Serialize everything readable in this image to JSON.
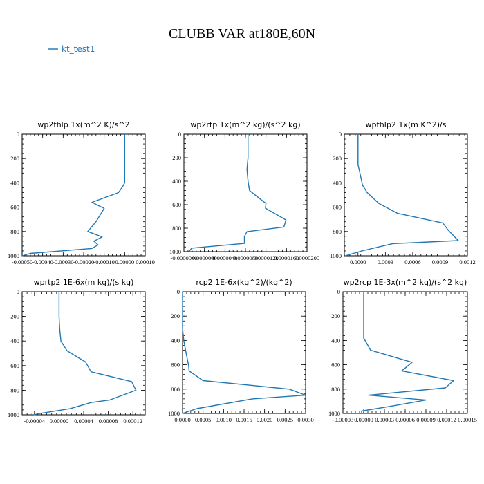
{
  "title": "CLUBB VAR at180E,60N",
  "legend": [
    {
      "label": "kt_test1",
      "color": "#2a7ab8"
    }
  ],
  "series_color": "#1f77b4",
  "chart_data": [
    {
      "type": "line",
      "title": "wp2thlp   1x(m^2 K)/s^2",
      "xlim": [
        -0.0005,
        0.0001
      ],
      "ylim": [
        1000,
        0
      ],
      "xticks": [
        -0.0005,
        -0.0004,
        -0.0003,
        -0.0002,
        -0.0001,
        0.0,
        0.0001
      ],
      "xtick_labels": [
        "-0.00050",
        "-0.00040",
        "-0.00030",
        "-0.00020",
        "-0.00010",
        "0.00000",
        "0.00010"
      ],
      "yticks": [
        0,
        200,
        400,
        600,
        800,
        1000
      ],
      "ytick_labels": [
        "0",
        "200",
        "400",
        "600",
        "800",
        "1000"
      ],
      "series": [
        {
          "name": "kt_test1",
          "x": [
            0.0,
            0.0,
            0.0,
            -1e-05,
            -3e-05,
            -0.00016,
            -0.0001,
            -0.00014,
            -0.00018,
            -0.00011,
            -0.00015,
            -0.00013,
            -0.00016,
            -0.00046,
            -0.0005
          ],
          "y": [
            0,
            200,
            400,
            430,
            480,
            560,
            610,
            720,
            800,
            845,
            880,
            910,
            940,
            980,
            1000
          ]
        }
      ]
    },
    {
      "type": "line",
      "title": "wp2rtp   1x(m^2 kg)/(s^2 kg)",
      "xlim": [
        -4e-06,
        2e-05
      ],
      "ylim": [
        1000,
        0
      ],
      "xticks": [
        -4e-06,
        0.0,
        4e-06,
        8e-06,
        1.2e-05,
        1.6e-05,
        2e-05
      ],
      "xtick_labels": [
        "-0.0000040",
        "0.0000000",
        "0.0000040",
        "0.0000080",
        "0.0000120",
        "0.0000160",
        "0.0000200"
      ],
      "yticks": [
        0,
        200,
        400,
        600,
        800,
        1000
      ],
      "ytick_labels": [
        "0",
        "200",
        "400",
        "600",
        "800",
        "1000"
      ],
      "series": [
        {
          "name": "kt_test1",
          "x": [
            8.5e-06,
            8.5e-06,
            8.3e-06,
            8.5e-06,
            8.8e-06,
            1.2e-05,
            1.19e-05,
            1.59e-05,
            1.55e-05,
            8.3e-06,
            7.8e-06,
            7.8e-06,
            -2.5e-06,
            -3e-06
          ],
          "y": [
            0,
            200,
            300,
            400,
            480,
            590,
            630,
            730,
            790,
            830,
            870,
            930,
            970,
            1000
          ]
        }
      ]
    },
    {
      "type": "line",
      "title": "wpthlp2   1x(m K^2)/s",
      "xlim": [
        -0.00015,
        0.0012
      ],
      "ylim": [
        1000,
        0
      ],
      "xticks": [
        0.0,
        0.0003,
        0.0006,
        0.0009,
        0.0012
      ],
      "xtick_labels": [
        "0.0000",
        "0.0003",
        "0.0006",
        "0.0009",
        "0.0012"
      ],
      "yticks": [
        0,
        200,
        400,
        600,
        800,
        1000
      ],
      "ytick_labels": [
        "0",
        "200",
        "400",
        "600",
        "800",
        "1000"
      ],
      "series": [
        {
          "name": "kt_test1",
          "x": [
            0.0,
            0.0,
            3e-05,
            5e-05,
            0.0001,
            0.00023,
            0.00043,
            0.00093,
            0.00099,
            0.0011,
            0.00038,
            4e-05,
            -0.00014
          ],
          "y": [
            0,
            250,
            350,
            420,
            480,
            570,
            650,
            730,
            790,
            875,
            900,
            960,
            1000
          ]
        }
      ]
    },
    {
      "type": "line",
      "title": "wprtp2   1E-6x(m kg)/(s kg)",
      "xlim": [
        -6e-05,
        0.00014
      ],
      "ylim": [
        1000,
        0
      ],
      "xticks": [
        -4e-05,
        0.0,
        4e-05,
        8e-05,
        0.00012
      ],
      "xtick_labels": [
        "-0.00004",
        "0.00000",
        "0.00004",
        "0.00008",
        "0.00012"
      ],
      "yticks": [
        0,
        200,
        400,
        600,
        800,
        1000
      ],
      "ytick_labels": [
        "0",
        "200",
        "400",
        "600",
        "800",
        "1000"
      ],
      "series": [
        {
          "name": "kt_test1",
          "x": [
            0.0,
            0.0,
            1e-06,
            3e-06,
            1.3e-05,
            4.3e-05,
            5.2e-05,
            0.000118,
            0.000125,
            8.2e-05,
            5.2e-05,
            1.8e-05,
            -3.2e-05,
            -4.1e-05
          ],
          "y": [
            0,
            200,
            300,
            400,
            480,
            570,
            650,
            730,
            800,
            880,
            900,
            950,
            990,
            1000
          ]
        }
      ]
    },
    {
      "type": "line",
      "title": "rcp2   1E-6x(kg^2)/(kg^2)",
      "xlim": [
        0.0,
        0.003
      ],
      "ylim": [
        1000,
        0
      ],
      "xticks": [
        0.0,
        0.0005,
        0.001,
        0.0015,
        0.002,
        0.0025,
        0.003
      ],
      "xtick_labels": [
        "0.0000",
        "0.0005",
        "0.0010",
        "0.0015",
        "0.0020",
        "0.0025",
        "0.0030"
      ],
      "yticks": [
        0,
        200,
        400,
        600,
        800,
        1000
      ],
      "ytick_labels": [
        "0",
        "200",
        "400",
        "600",
        "800",
        "1000"
      ],
      "series": [
        {
          "name": "kt_test1",
          "x": [
            0.0,
            0.0,
            3e-05,
            8e-05,
            0.00015,
            0.00016,
            0.0005,
            0.0026,
            0.003,
            0.0017,
            0.00035,
            0.0
          ],
          "y": [
            0,
            300,
            400,
            490,
            610,
            650,
            730,
            800,
            850,
            880,
            960,
            1000
          ]
        }
      ]
    },
    {
      "type": "line",
      "title": "wp2rcp   1E-3x(m^2 kg)/(s^2 kg)",
      "xlim": [
        -3e-05,
        0.00015
      ],
      "ylim": [
        1000,
        0
      ],
      "xticks": [
        -3e-05,
        0.0,
        3e-05,
        6e-05,
        9e-05,
        0.00012,
        0.00015
      ],
      "xtick_labels": [
        "-0.00003",
        "0.00000",
        "0.00003",
        "0.00006",
        "0.00009",
        "0.00012",
        "0.00015"
      ],
      "yticks": [
        0,
        200,
        400,
        600,
        800,
        1000
      ],
      "ytick_labels": [
        "0",
        "200",
        "400",
        "600",
        "800",
        "1000"
      ],
      "series": [
        {
          "name": "kt_test1",
          "x": [
            0.0,
            0.0,
            0.0,
            1e-05,
            7e-05,
            5.5e-05,
            0.00013,
            0.000118,
            7e-06,
            9e-05,
            4e-05,
            -3e-06,
            -3e-06
          ],
          "y": [
            0,
            200,
            380,
            480,
            580,
            650,
            730,
            790,
            850,
            890,
            940,
            980,
            1000
          ]
        }
      ]
    }
  ]
}
